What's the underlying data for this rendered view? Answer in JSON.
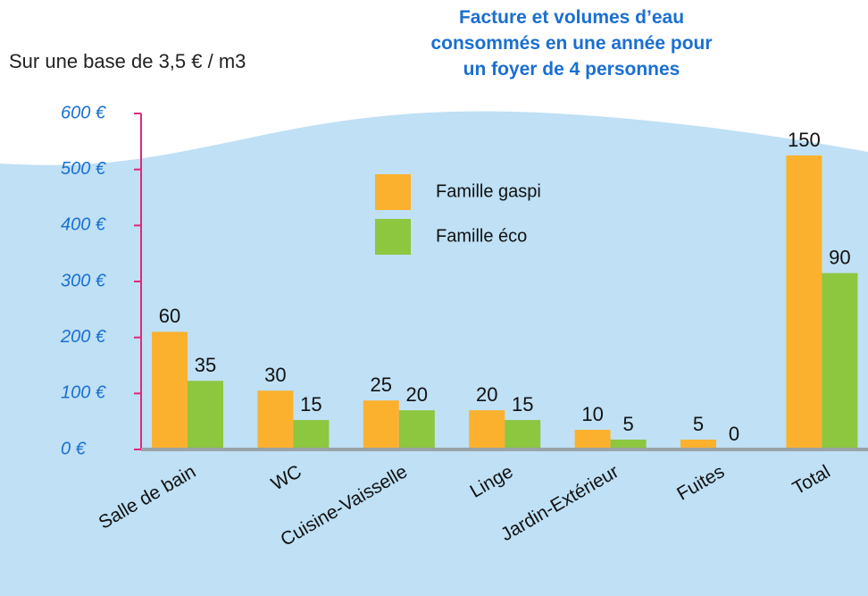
{
  "chart_data": {
    "type": "bar",
    "title": "Facture et volumes d’eau\nconsommés en une année pour\nun foyer de 4 personnes",
    "subtitle": "Sur une base de 3,5 € / m3",
    "categories": [
      "Salle de bain",
      "WC",
      "Cuisine-Vaisselle",
      "Linge",
      "Jardin-Extérieur",
      "Fuites",
      "Total"
    ],
    "series": [
      {
        "name": "Famille gaspi",
        "color": "#fbb12e",
        "values": [
          210,
          105,
          87.5,
          70,
          35,
          17.5,
          525
        ],
        "value_labels": [
          "60",
          "30",
          "25",
          "20",
          "10",
          "5",
          "150"
        ]
      },
      {
        "name": "Famille éco",
        "color": "#8dc63f",
        "values": [
          122.5,
          52.5,
          70,
          52.5,
          17.5,
          0,
          315
        ],
        "value_labels": [
          "35",
          "15",
          "20",
          "15",
          "5",
          "0",
          "90"
        ]
      }
    ],
    "ylim": [
      0,
      600
    ],
    "yticks": [
      {
        "value": 0,
        "label": "0 €"
      },
      {
        "value": 100,
        "label": "100 €"
      },
      {
        "value": 200,
        "label": "200 €"
      },
      {
        "value": 300,
        "label": "300 €"
      },
      {
        "value": 400,
        "label": "400 €"
      },
      {
        "value": 500,
        "label": "500 €"
      },
      {
        "value": 600,
        "label": "600 €"
      }
    ]
  }
}
